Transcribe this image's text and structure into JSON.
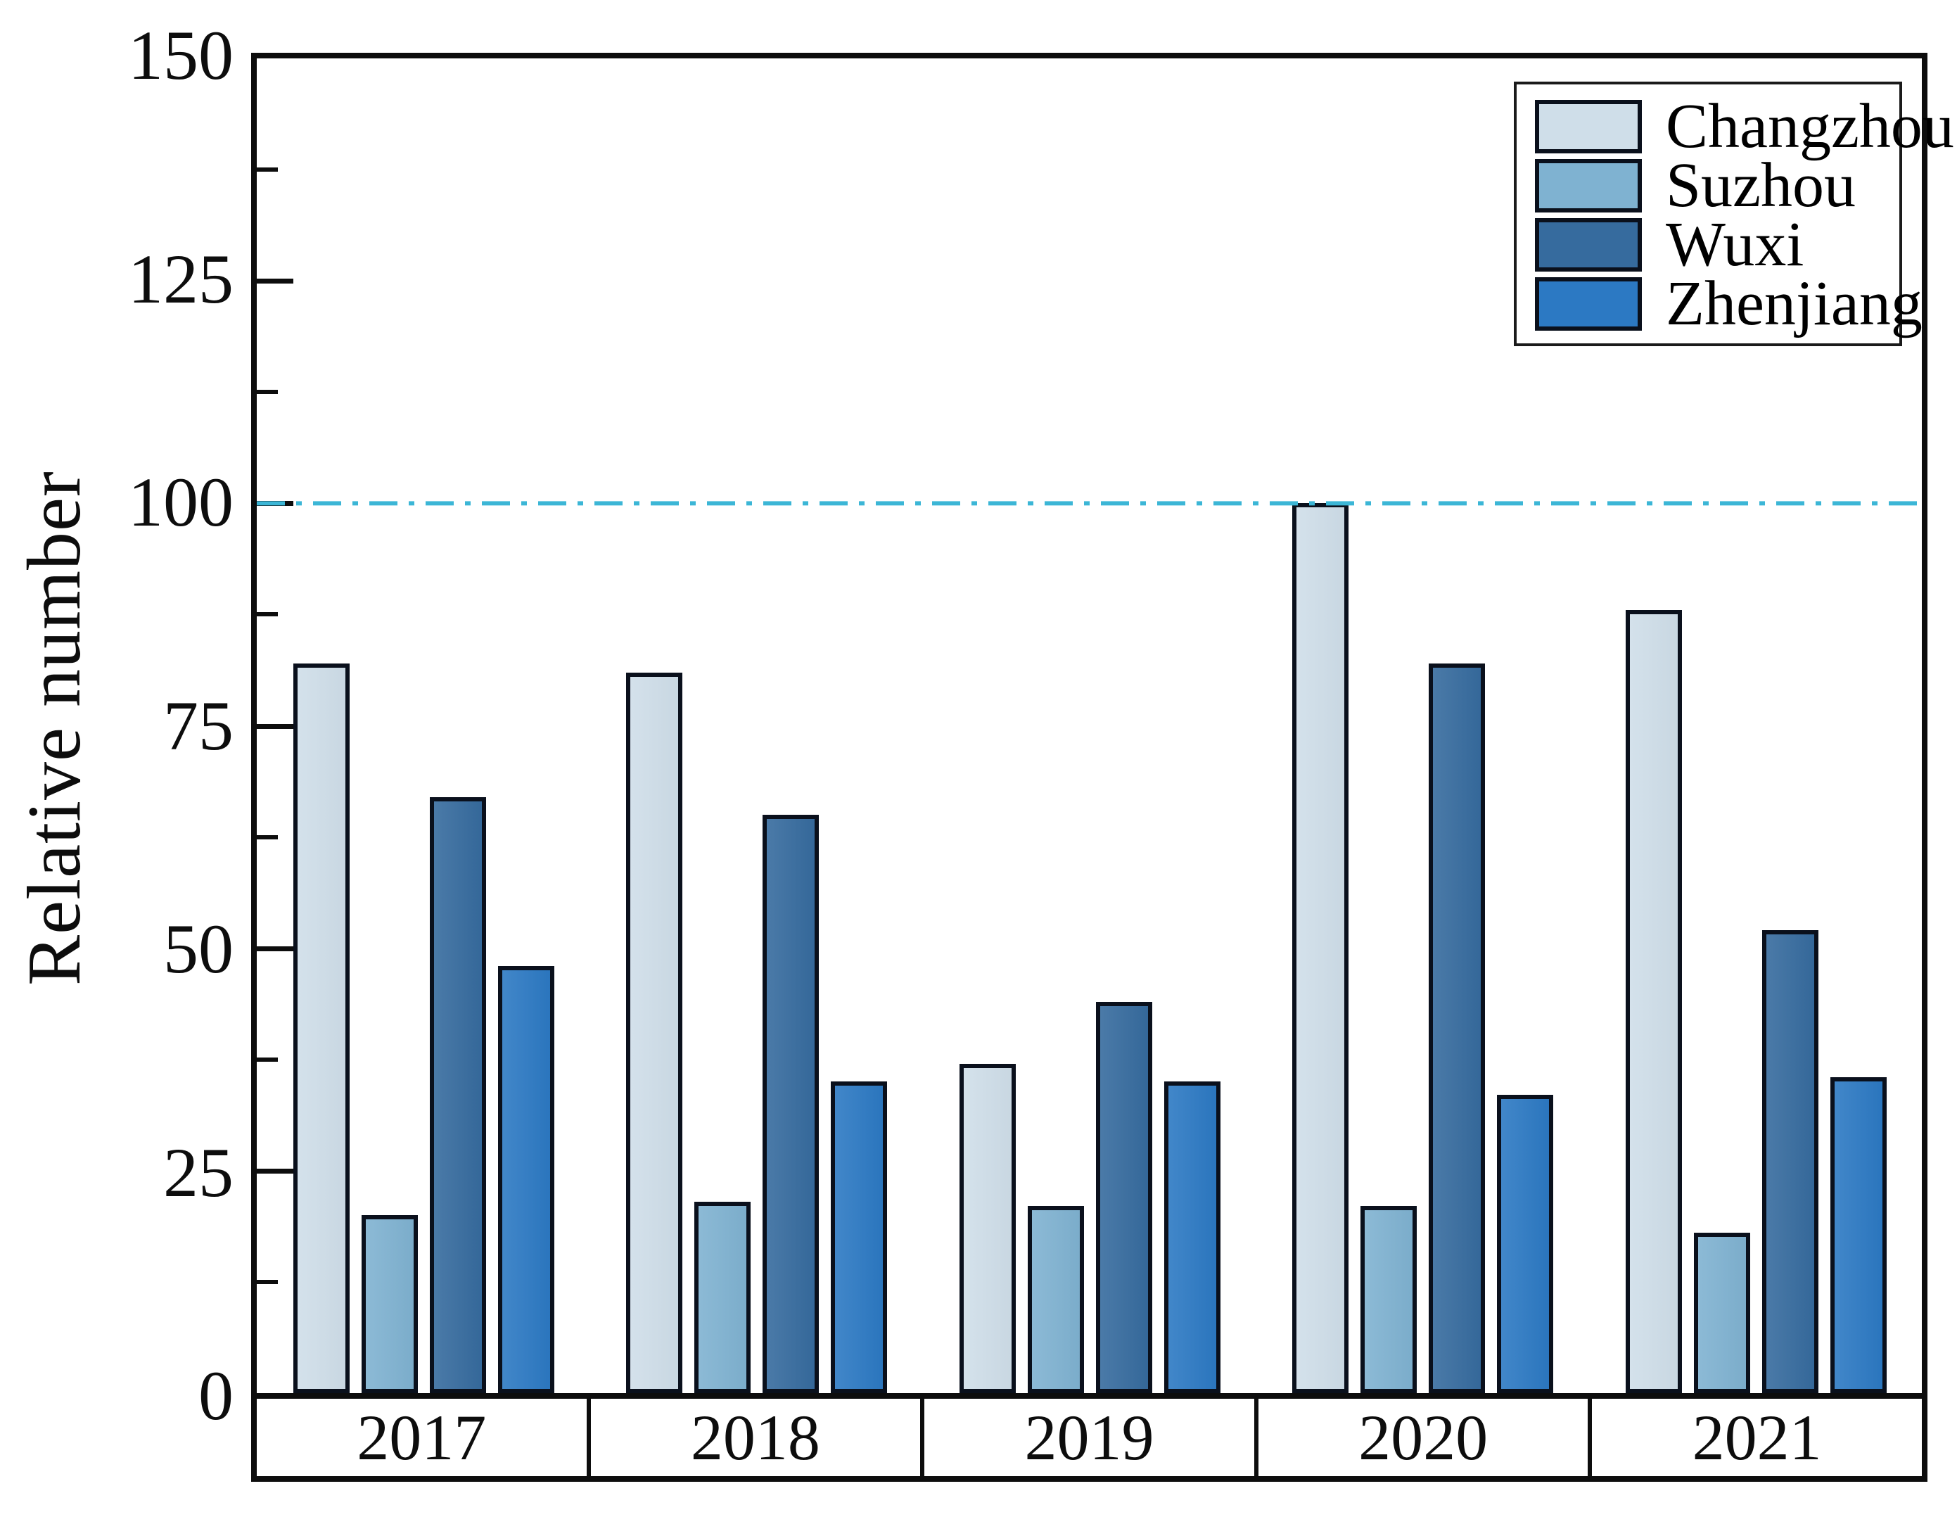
{
  "chart_data": {
    "type": "bar",
    "title": "",
    "xlabel": "",
    "ylabel": "Relative number",
    "categories": [
      "2017",
      "2018",
      "2019",
      "2020",
      "2021"
    ],
    "series": [
      {
        "name": "Changzhou",
        "color": "#cfdee9",
        "values": [
          82,
          81,
          37,
          100,
          88
        ]
      },
      {
        "name": "Suzhou",
        "color": "#7fb2d1",
        "values": [
          20,
          21.5,
          21,
          21,
          18
        ]
      },
      {
        "name": "Wuxi",
        "color": "#366b9e",
        "values": [
          67,
          65,
          44,
          82,
          52
        ]
      },
      {
        "name": "Zhenjiang",
        "color": "#2c79c3",
        "values": [
          48,
          35,
          35,
          33.5,
          35.5
        ]
      }
    ],
    "ylim": [
      0,
      150
    ],
    "yticks": [
      0,
      25,
      50,
      75,
      100,
      125,
      150
    ],
    "minor_tick_interval": 12.5,
    "reference_line": {
      "value": 100,
      "color": "#3cb6d6",
      "style": "dash-dot"
    },
    "legend_position": "top-right",
    "grid": false,
    "bar_outline_color": "#0a101c",
    "frame_color": "#0d0d0d"
  }
}
